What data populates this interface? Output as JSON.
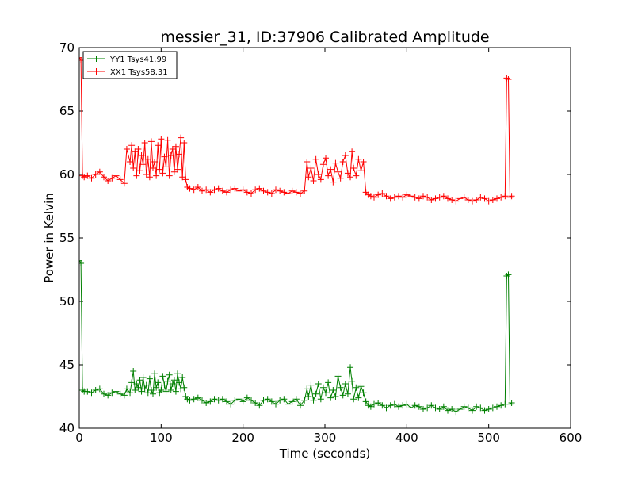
{
  "chart_data": {
    "type": "line",
    "title": "messier_31, ID:37906 Calibrated Amplitude",
    "xlabel": "Time (seconds)",
    "ylabel": "Power in Kelvin",
    "xlim": [
      0,
      600
    ],
    "ylim": [
      40,
      70
    ],
    "xticks": [
      0,
      100,
      200,
      300,
      400,
      500,
      600
    ],
    "yticks": [
      40,
      45,
      50,
      55,
      60,
      65,
      70
    ],
    "grid": false,
    "legend_position": "top-left",
    "marker": "+",
    "series": [
      {
        "name": "YY1 Tsys41.99",
        "color": "#008000",
        "x": [
          0,
          2,
          4,
          6,
          10,
          15,
          20,
          25,
          30,
          35,
          40,
          45,
          50,
          55,
          58,
          62,
          64,
          66,
          68,
          70,
          72,
          74,
          76,
          78,
          80,
          82,
          84,
          86,
          88,
          90,
          92,
          94,
          96,
          98,
          100,
          102,
          104,
          106,
          108,
          110,
          112,
          114,
          116,
          118,
          120,
          122,
          124,
          126,
          128,
          130,
          132,
          135,
          140,
          145,
          150,
          155,
          160,
          165,
          170,
          175,
          180,
          185,
          190,
          195,
          200,
          205,
          210,
          215,
          220,
          225,
          230,
          235,
          240,
          245,
          250,
          255,
          260,
          265,
          270,
          275,
          278,
          280,
          283,
          286,
          289,
          292,
          295,
          298,
          301,
          304,
          307,
          310,
          313,
          316,
          319,
          322,
          325,
          328,
          331,
          333,
          335,
          338,
          341,
          344,
          347,
          350,
          353,
          356,
          360,
          365,
          370,
          375,
          380,
          385,
          390,
          395,
          400,
          405,
          410,
          415,
          420,
          425,
          430,
          435,
          440,
          445,
          450,
          455,
          460,
          465,
          470,
          475,
          480,
          485,
          490,
          495,
          500,
          505,
          510,
          515,
          520,
          522,
          524,
          526,
          528
        ],
        "values": [
          53.2,
          53.0,
          43.0,
          42.9,
          42.9,
          42.8,
          43.0,
          43.1,
          42.7,
          42.6,
          42.8,
          42.9,
          42.7,
          42.6,
          43.1,
          42.8,
          43.6,
          44.5,
          43.0,
          43.5,
          43.2,
          43.8,
          42.9,
          44.0,
          43.1,
          43.4,
          42.8,
          43.9,
          43.0,
          42.7,
          44.3,
          43.2,
          43.6,
          42.8,
          43.0,
          44.1,
          43.4,
          42.9,
          43.7,
          44.2,
          43.0,
          43.5,
          43.8,
          42.9,
          44.3,
          43.6,
          43.1,
          44.0,
          43.2,
          42.5,
          42.3,
          42.2,
          42.3,
          42.4,
          42.2,
          42.0,
          42.1,
          42.3,
          42.2,
          42.3,
          42.1,
          41.9,
          42.2,
          42.3,
          42.1,
          42.4,
          42.2,
          42.0,
          41.8,
          42.2,
          42.3,
          42.1,
          41.9,
          42.2,
          42.3,
          41.9,
          42.1,
          42.3,
          41.8,
          42.2,
          43.1,
          42.5,
          43.4,
          42.2,
          42.7,
          43.5,
          42.3,
          43.2,
          42.8,
          43.6,
          42.4,
          43.0,
          42.5,
          44.1,
          43.2,
          42.6,
          43.5,
          42.7,
          44.8,
          43.7,
          42.3,
          43.2,
          42.4,
          43.3,
          42.8,
          42.1,
          41.8,
          41.7,
          41.9,
          42.0,
          41.8,
          41.6,
          41.8,
          41.9,
          41.7,
          41.8,
          41.9,
          41.6,
          41.8,
          41.7,
          41.5,
          41.6,
          41.8,
          41.6,
          41.5,
          41.7,
          41.4,
          41.5,
          41.3,
          41.5,
          41.7,
          41.6,
          41.4,
          41.7,
          41.6,
          41.4,
          41.5,
          41.6,
          41.7,
          41.8,
          41.9,
          52.0,
          52.1,
          41.9,
          42.0
        ]
      },
      {
        "name": "XX1 Tsys58.31",
        "color": "#ff0000",
        "x": [
          0,
          2,
          4,
          6,
          10,
          15,
          20,
          25,
          30,
          35,
          40,
          45,
          50,
          55,
          58,
          62,
          64,
          66,
          68,
          70,
          72,
          74,
          76,
          78,
          80,
          82,
          84,
          86,
          88,
          90,
          92,
          94,
          96,
          98,
          100,
          102,
          104,
          106,
          108,
          110,
          112,
          114,
          116,
          118,
          120,
          122,
          124,
          126,
          128,
          130,
          132,
          135,
          140,
          145,
          150,
          155,
          160,
          165,
          170,
          175,
          180,
          185,
          190,
          195,
          200,
          205,
          210,
          215,
          220,
          225,
          230,
          235,
          240,
          245,
          250,
          255,
          260,
          265,
          270,
          275,
          278,
          280,
          283,
          286,
          289,
          292,
          295,
          298,
          301,
          304,
          307,
          310,
          313,
          316,
          319,
          322,
          325,
          328,
          331,
          333,
          335,
          338,
          341,
          344,
          347,
          350,
          353,
          356,
          360,
          365,
          370,
          375,
          380,
          385,
          390,
          395,
          400,
          405,
          410,
          415,
          420,
          425,
          430,
          435,
          440,
          445,
          450,
          455,
          460,
          465,
          470,
          475,
          480,
          485,
          490,
          495,
          500,
          505,
          510,
          515,
          520,
          522,
          524,
          526,
          528
        ],
        "values": [
          69.2,
          69.0,
          59.9,
          59.8,
          59.9,
          59.7,
          60.0,
          60.2,
          59.8,
          59.5,
          59.7,
          59.9,
          59.6,
          59.3,
          62.0,
          61.0,
          62.3,
          60.5,
          61.8,
          59.9,
          62.0,
          60.3,
          61.5,
          60.8,
          62.5,
          60.0,
          61.2,
          59.8,
          62.6,
          60.5,
          61.0,
          59.9,
          62.3,
          60.4,
          62.8,
          60.1,
          61.4,
          60.6,
          62.7,
          59.9,
          61.5,
          62.0,
          60.2,
          62.2,
          60.4,
          61.6,
          62.9,
          59.8,
          62.5,
          59.6,
          59.0,
          58.9,
          58.8,
          59.0,
          58.7,
          58.8,
          58.6,
          58.8,
          58.9,
          58.7,
          58.6,
          58.8,
          58.9,
          58.7,
          58.8,
          58.6,
          58.5,
          58.8,
          58.9,
          58.7,
          58.6,
          58.5,
          58.8,
          58.7,
          58.6,
          58.5,
          58.7,
          58.6,
          58.5,
          58.7,
          61.0,
          59.8,
          60.5,
          59.5,
          61.2,
          60.0,
          59.6,
          60.8,
          61.3,
          59.9,
          60.4,
          59.4,
          60.9,
          60.2,
          59.7,
          61.0,
          61.5,
          60.1,
          59.8,
          61.8,
          60.5,
          59.9,
          61.2,
          60.3,
          61.0,
          58.6,
          58.4,
          58.3,
          58.2,
          58.4,
          58.5,
          58.3,
          58.1,
          58.2,
          58.3,
          58.2,
          58.4,
          58.3,
          58.2,
          58.1,
          58.3,
          58.2,
          58.0,
          58.1,
          58.2,
          58.3,
          58.1,
          58.0,
          57.9,
          58.1,
          58.2,
          58.0,
          57.9,
          58.0,
          58.2,
          58.1,
          57.9,
          58.0,
          58.1,
          58.2,
          58.3,
          67.6,
          67.5,
          58.2,
          58.3
        ]
      }
    ]
  }
}
